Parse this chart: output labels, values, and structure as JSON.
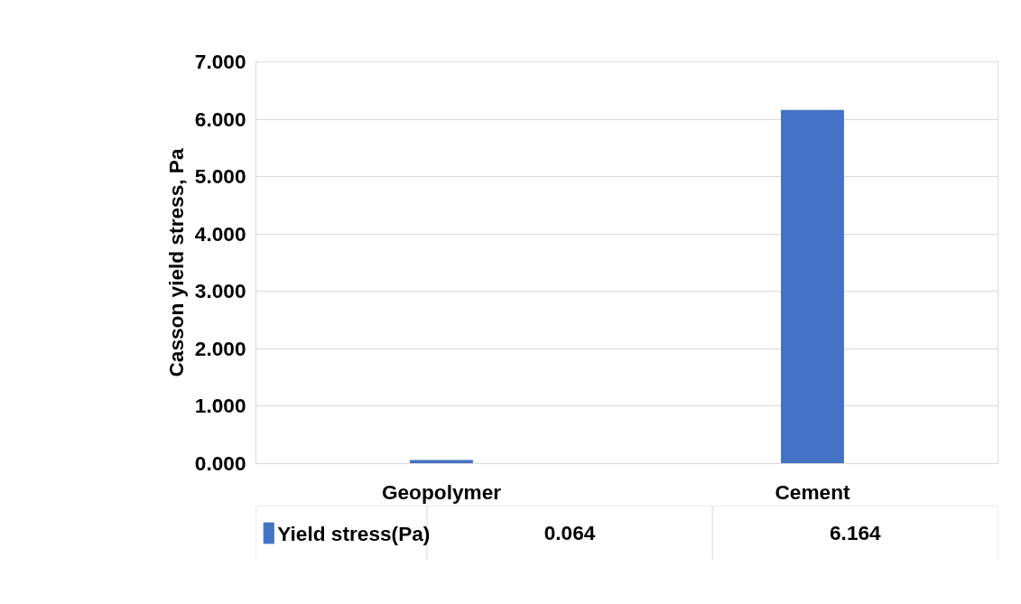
{
  "chart_data": {
    "type": "bar",
    "ylabel": "Casson yield stress, Pa",
    "categories": [
      "Geopolymer",
      "Cement"
    ],
    "series": [
      {
        "name": "Yield stress(Pa)",
        "color": "#4472c4",
        "values": [
          0.064,
          6.164
        ]
      }
    ],
    "ylim": [
      0,
      7
    ],
    "yticks": [
      {
        "value": 0,
        "label": "0.000"
      },
      {
        "value": 1,
        "label": "1.000"
      },
      {
        "value": 2,
        "label": "2.000"
      },
      {
        "value": 3,
        "label": "3.000"
      },
      {
        "value": 4,
        "label": "4.000"
      },
      {
        "value": 5,
        "label": "5.000"
      },
      {
        "value": 6,
        "label": "6.000"
      },
      {
        "value": 7,
        "label": "7.000"
      }
    ],
    "grid": "y",
    "legend": "bottom",
    "data_labels": true
  }
}
